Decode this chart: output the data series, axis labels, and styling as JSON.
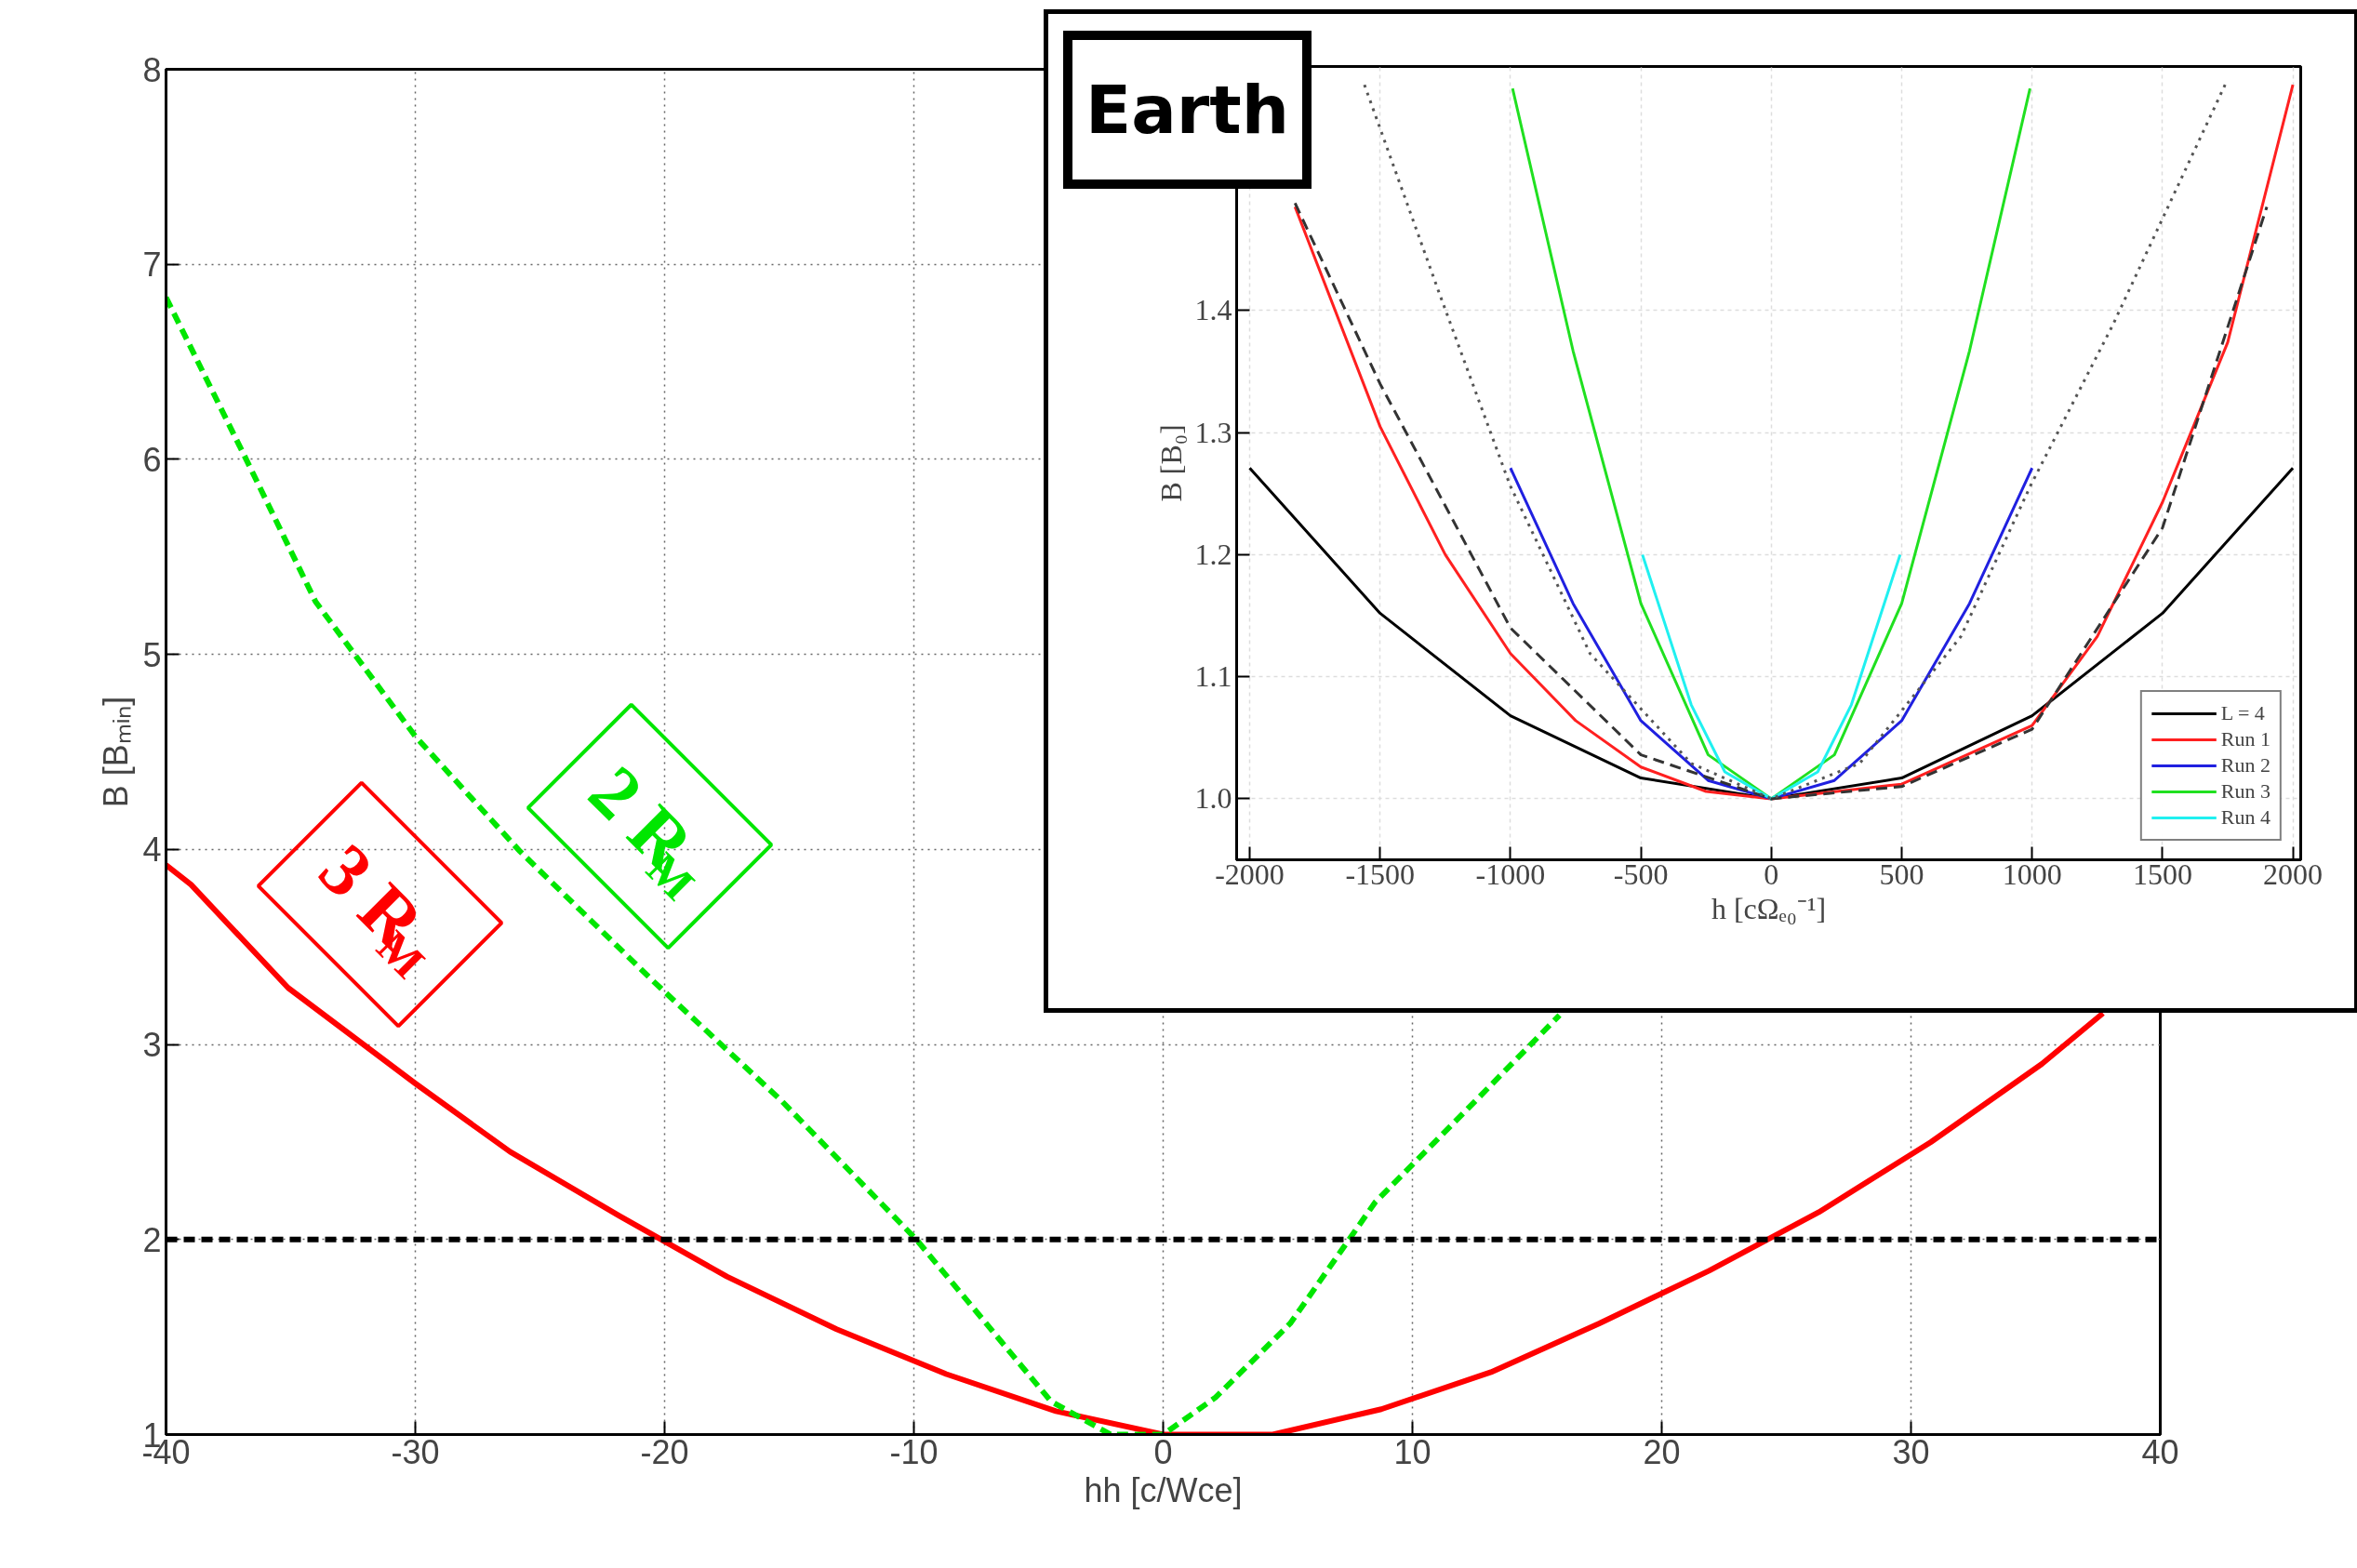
{
  "chart_data": [
    {
      "type": "line",
      "xlabel": "hh [c/Wce]",
      "ylabel": "B [Bₘᵢₙ]",
      "xlim": [
        -40,
        40
      ],
      "ylim": [
        1,
        8
      ],
      "xticks": [
        -40,
        -30,
        -20,
        -10,
        0,
        10,
        20,
        30,
        40
      ],
      "yticks": [
        1,
        2,
        3,
        4,
        5,
        6,
        7,
        8
      ],
      "grid": true,
      "series": [
        {
          "color": "#ff0000",
          "line_style": "solid",
          "x": [
            -40,
            -39,
            -35.1,
            -30,
            -26.2,
            -21.8,
            -17.5,
            -13.1,
            -8.7,
            -4.3,
            0,
            4.4,
            8.75,
            13.15,
            17.5,
            21.9,
            26.3,
            30.8,
            35.25,
            37.7
          ],
          "values": [
            3.92,
            3.82,
            3.29,
            2.8,
            2.45,
            2.12,
            1.81,
            1.54,
            1.31,
            1.12,
            1.0,
            1.0,
            1.13,
            1.32,
            1.57,
            1.84,
            2.14,
            2.5,
            2.9,
            3.16
          ]
        },
        {
          "color": "#00e600",
          "line_style": "dashed",
          "x": [
            -40,
            -36.9,
            -34,
            -30,
            -25.8,
            -20.5,
            -15.3,
            -9.9,
            -4.5,
            -2.1,
            0,
            2.1,
            5.1,
            8.5,
            12.6,
            15.9
          ],
          "values": [
            6.83,
            6.03,
            5.27,
            4.58,
            3.99,
            3.33,
            2.71,
            2.0,
            1.17,
            1.0,
            1.0,
            1.19,
            1.57,
            2.19,
            2.72,
            3.15
          ]
        }
      ],
      "ref_lines": [
        {
          "axis": "y",
          "value": 2,
          "color": "#000000",
          "line_style": "dashed"
        }
      ],
      "annotations": [
        "3 R$_{M}$",
        "2 R$_{M}$"
      ]
    },
    {
      "type": "line",
      "xlabel": "h [cΩₑ₀⁻¹]",
      "ylabel": "B [B₀]",
      "xlim": [
        -2050,
        2030
      ],
      "ylim": [
        0.95,
        1.6
      ],
      "xticks": [
        -2000,
        -1500,
        -1000,
        -500,
        0,
        500,
        1000,
        1500,
        2000
      ],
      "yticks": [
        {
          "value": 1,
          "label": "1.0"
        },
        1.1,
        1.2,
        1.3,
        1.4
      ],
      "grid": true,
      "legend": "bottom right",
      "series": [
        {
          "name": "L = 4",
          "color": "#000000",
          "line_style": "solid",
          "x": [
            -2000,
            -1500,
            -1000,
            -500,
            0,
            500,
            1000,
            1500,
            2000
          ],
          "values": [
            1.271,
            1.152,
            1.068,
            1.017,
            1.0,
            1.017,
            1.068,
            1.152,
            1.271
          ]
        },
        {
          "name": "Run 1",
          "color": "#ff2020",
          "line_style": "solid",
          "x": [
            -1826,
            -1500,
            -1250,
            -1000,
            -750,
            -500,
            -250,
            0,
            500,
            1000,
            1250,
            1500,
            1750,
            2000
          ],
          "values": [
            1.485,
            1.305,
            1.2,
            1.119,
            1.064,
            1.026,
            1.006,
            1.0,
            1.012,
            1.06,
            1.133,
            1.243,
            1.374,
            1.585
          ]
        },
        {
          "name": "Run 2",
          "color": "#2020e0",
          "line_style": "solid",
          "x": [
            -1000,
            -760,
            -500,
            -242,
            0,
            242,
            500,
            760,
            1000
          ],
          "values": [
            1.271,
            1.16,
            1.064,
            1.015,
            1.0,
            1.015,
            1.064,
            1.16,
            1.271
          ]
        },
        {
          "name": "Run 3",
          "color": "#20e020",
          "line_style": "solid",
          "x": [
            -992,
            -760,
            -500,
            -242,
            0,
            242,
            500,
            760,
            992
          ],
          "values": [
            1.582,
            1.367,
            1.16,
            1.036,
            1.0,
            1.036,
            1.16,
            1.367,
            1.582
          ]
        },
        {
          "name": "Run 4",
          "color": "#20f0f0",
          "line_style": "solid",
          "x": [
            -494,
            -307,
            -178,
            0,
            178,
            307,
            494
          ],
          "values": [
            1.2,
            1.077,
            1.022,
            1.0,
            1.022,
            1.077,
            1.2
          ]
        },
        {
          "color": "#333333",
          "line_style": "dashed",
          "x": [
            -1826,
            -1500,
            -1000,
            -500,
            0,
            500,
            1000,
            1500,
            1900
          ],
          "values": [
            1.488,
            1.34,
            1.14,
            1.036,
            1.0,
            1.01,
            1.057,
            1.222,
            1.485
          ]
        },
        {
          "color": "#555555",
          "line_style": "dotted",
          "x": [
            -1560,
            -1276,
            -1002,
            -695,
            -307,
            0,
            339,
            727,
            995,
            1309,
            1740
          ],
          "values": [
            1.585,
            1.416,
            1.257,
            1.119,
            1.029,
            1.0,
            1.029,
            1.133,
            1.257,
            1.388,
            1.585
          ]
        }
      ],
      "annotations": [
        "Earth"
      ]
    }
  ]
}
